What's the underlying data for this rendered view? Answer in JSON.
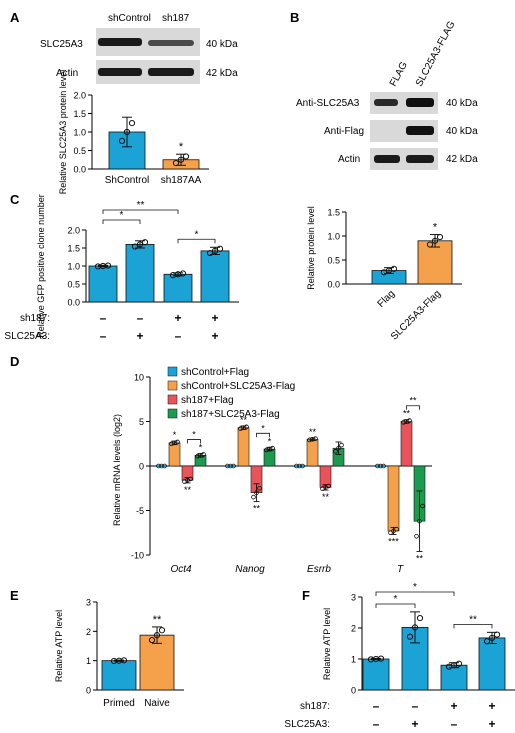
{
  "figure": {
    "panels": [
      {
        "letter": "A"
      },
      {
        "letter": "B"
      },
      {
        "letter": "C"
      },
      {
        "letter": "D"
      },
      {
        "letter": "E"
      },
      {
        "letter": "F"
      }
    ],
    "colors": {
      "blue": "#1ba3d6",
      "orange": "#f5a04a",
      "red": "#e8545a",
      "green": "#1c9b4f",
      "blot_bg": "#d9d9d9",
      "band": "#1a1a1a"
    },
    "blot_a": {
      "lanes": [
        "shControl",
        "sh187"
      ],
      "rows": [
        {
          "label": "SLC25A3",
          "size": "40 kDa"
        },
        {
          "label": "Actin",
          "size": "42 kDa"
        }
      ]
    },
    "blot_b": {
      "lanes": [
        "FLAG",
        "SLC25A3-FLAG"
      ],
      "rows": [
        {
          "label": "Anti-SLC25A3",
          "size": "40 kDa"
        },
        {
          "label": "Anti-Flag",
          "size": "40 kDa"
        },
        {
          "label": "Actin",
          "size": "42 kDa"
        }
      ]
    },
    "cond_labels": {
      "sh187": "sh187:",
      "slc": "SLC25A3:",
      "plus": "+",
      "minus": "–"
    }
  },
  "chart_data": [
    {
      "id": "A",
      "type": "bar",
      "ylabel": "Relative SLC25A3 protein level",
      "categories": [
        "ShControl",
        "sh187AA"
      ],
      "values": [
        1.0,
        0.25
      ],
      "errors": [
        0.4,
        0.15
      ],
      "colors": [
        "#1ba3d6",
        "#f5a04a"
      ],
      "ylim": [
        0,
        2.0
      ],
      "yticks": [
        "0.0",
        "0.5",
        "1.0",
        "1.5",
        "2.0"
      ],
      "significance": [
        {
          "bar": 1,
          "label": "*"
        }
      ]
    },
    {
      "id": "B",
      "type": "bar",
      "ylabel": "Relative protein level",
      "categories": [
        "Flag",
        "SLC25A3-Flag"
      ],
      "values": [
        0.28,
        0.9
      ],
      "errors": [
        0.06,
        0.13
      ],
      "colors": [
        "#1ba3d6",
        "#f5a04a"
      ],
      "ylim": [
        0,
        1.5
      ],
      "yticks": [
        "0.0",
        "0.5",
        "1.0",
        "1.5"
      ],
      "significance": [
        {
          "bar": 1,
          "label": "*"
        }
      ]
    },
    {
      "id": "C",
      "type": "bar",
      "ylabel": "Relative GFP positive clone number",
      "values": [
        1.0,
        1.6,
        0.77,
        1.42
      ],
      "errors": [
        0.02,
        0.1,
        0.04,
        0.1
      ],
      "colors": [
        "#1ba3d6",
        "#1ba3d6",
        "#1ba3d6",
        "#1ba3d6"
      ],
      "ylim": [
        0,
        2.0
      ],
      "yticks": [
        "0.0",
        "0.5",
        "1.0",
        "1.5",
        "2.0"
      ],
      "conditions": {
        "sh187": [
          "–",
          "–",
          "+",
          "+"
        ],
        "slc": [
          "–",
          "+",
          "–",
          "+"
        ]
      },
      "brackets": [
        {
          "from": 0,
          "to": 1,
          "label": "*"
        },
        {
          "from": 0,
          "to": 2,
          "label": "**"
        },
        {
          "from": 2,
          "to": 3,
          "label": "*"
        }
      ]
    },
    {
      "id": "D",
      "type": "bar",
      "ylabel": "Relative mRNA levels (log2)",
      "categories": [
        "Oct4",
        "Nanog",
        "Esrrb",
        "T"
      ],
      "series": [
        {
          "name": "shControl+Flag",
          "color": "#1ba3d6",
          "values": [
            0,
            0,
            0,
            0
          ],
          "errors": [
            0,
            0,
            0,
            0
          ]
        },
        {
          "name": "shControl+SLC25A3-Flag",
          "color": "#f5a04a",
          "values": [
            2.6,
            4.3,
            3.0,
            -7.3
          ],
          "errors": [
            0.2,
            0.2,
            0.15,
            0.4
          ]
        },
        {
          "name": "sh187+Flag",
          "color": "#e8545a",
          "values": [
            -1.6,
            -3.0,
            -2.4,
            5.0
          ],
          "errors": [
            0.3,
            1.0,
            0.3,
            0.2
          ]
        },
        {
          "name": "sh187+SLC25A3-Flag",
          "color": "#1c9b4f",
          "values": [
            1.2,
            1.9,
            2.0,
            -6.2
          ],
          "errors": [
            0.2,
            0.2,
            0.7,
            3.4
          ]
        }
      ],
      "ylim": [
        -10,
        10
      ],
      "yticks": [
        "-10",
        "-5",
        "0",
        "5",
        "10"
      ],
      "significance": [
        {
          "cat": 0,
          "bar": 1,
          "label": "*",
          "pos": "above"
        },
        {
          "cat": 0,
          "bar": 2,
          "label": "**",
          "pos": "below"
        },
        {
          "cat": 0,
          "bar": 3,
          "label": "*",
          "pos": "above"
        },
        {
          "cat": 1,
          "bar": 1,
          "label": "**",
          "pos": "above"
        },
        {
          "cat": 1,
          "bar": 2,
          "label": "**",
          "pos": "below"
        },
        {
          "cat": 1,
          "bar": 3,
          "label": "*",
          "pos": "above"
        },
        {
          "cat": 2,
          "bar": 1,
          "label": "**",
          "pos": "above"
        },
        {
          "cat": 2,
          "bar": 2,
          "label": "**",
          "pos": "below"
        },
        {
          "cat": 3,
          "bar": 1,
          "label": "***",
          "pos": "below"
        },
        {
          "cat": 3,
          "bar": 2,
          "label": "**",
          "pos": "above"
        },
        {
          "cat": 3,
          "bar": 3,
          "label": "**",
          "pos": "below"
        }
      ],
      "brackets": [
        {
          "cat": 0,
          "from": 2,
          "to": 3,
          "label": "*"
        },
        {
          "cat": 1,
          "from": 2,
          "to": 3,
          "label": "*"
        },
        {
          "cat": 3,
          "from": 2,
          "to": 3,
          "label": "**"
        }
      ]
    },
    {
      "id": "E",
      "type": "bar",
      "ylabel": "Relative ATP level",
      "categories": [
        "Primed",
        "Naive"
      ],
      "values": [
        1.0,
        1.87
      ],
      "errors": [
        0.02,
        0.28
      ],
      "colors": [
        "#1ba3d6",
        "#f5a04a"
      ],
      "ylim": [
        0,
        3
      ],
      "yticks": [
        "0",
        "1",
        "2",
        "3"
      ],
      "significance": [
        {
          "bar": 1,
          "label": "**"
        }
      ]
    },
    {
      "id": "F",
      "type": "bar",
      "ylabel": "Relative ATP level",
      "values": [
        1.0,
        2.02,
        0.8,
        1.68
      ],
      "errors": [
        0.02,
        0.5,
        0.08,
        0.18
      ],
      "colors": [
        "#1ba3d6",
        "#1ba3d6",
        "#1ba3d6",
        "#1ba3d6"
      ],
      "ylim": [
        0,
        3
      ],
      "yticks": [
        "0",
        "1",
        "2",
        "3"
      ],
      "conditions": {
        "sh187": [
          "–",
          "–",
          "+",
          "+"
        ],
        "slc": [
          "–",
          "+",
          "–",
          "+"
        ]
      },
      "brackets": [
        {
          "from": 0,
          "to": 1,
          "label": "*"
        },
        {
          "from": 0,
          "to": 2,
          "label": "*"
        },
        {
          "from": 2,
          "to": 3,
          "label": "**"
        }
      ]
    }
  ]
}
